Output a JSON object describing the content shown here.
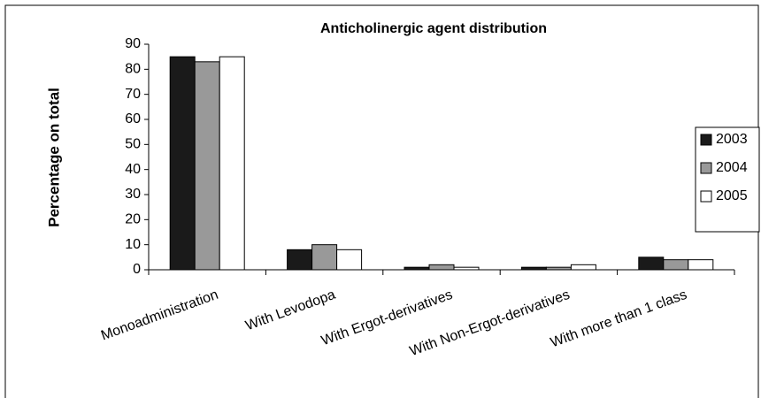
{
  "chart_data": {
    "type": "bar",
    "title": "Anticholinergic agent distribution",
    "y_label": "Percentage on total",
    "categories": [
      "Monoadministration",
      "With Levodopa",
      "With Ergot-derivatives",
      "With Non-Ergot-derivatives",
      "With more than 1 class"
    ],
    "series": [
      {
        "name": "2003",
        "color": "#1a1a1a",
        "values": [
          85,
          8,
          1,
          1,
          5
        ]
      },
      {
        "name": "2004",
        "color": "#999999",
        "values": [
          83,
          10,
          2,
          1,
          4
        ]
      },
      {
        "name": "2005",
        "color": "#ffffff",
        "values": [
          85,
          8,
          1,
          2,
          4
        ]
      }
    ],
    "ylim": [
      0,
      90
    ],
    "yticks": [
      0,
      10,
      20,
      30,
      40,
      50,
      60,
      70,
      80,
      90
    ],
    "legend": "right",
    "grid": false
  }
}
